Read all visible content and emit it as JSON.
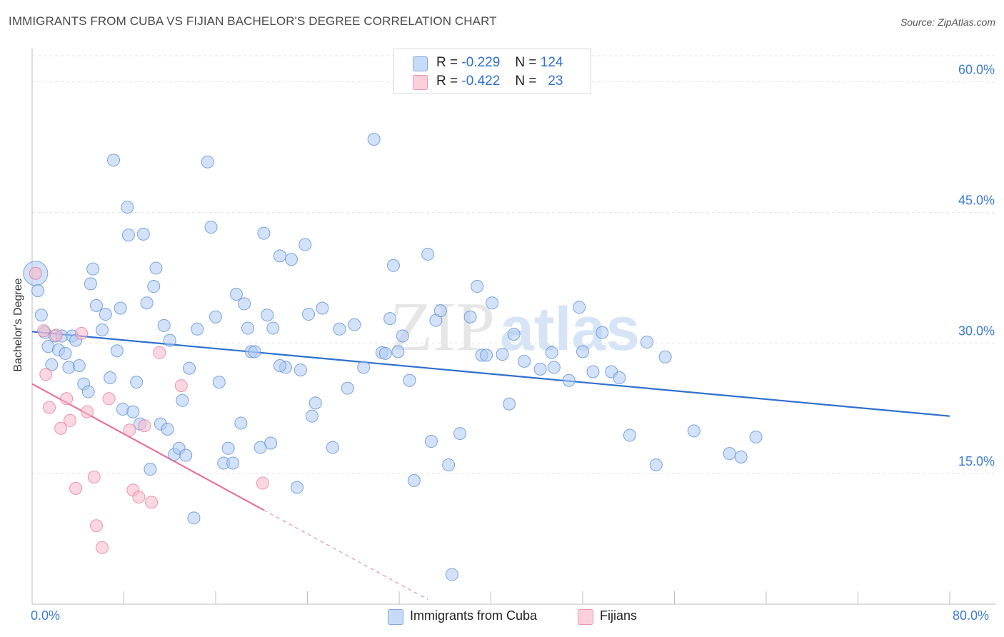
{
  "title": "IMMIGRANTS FROM CUBA VS FIJIAN BACHELOR'S DEGREE CORRELATION CHART",
  "source": "Source: ZipAtlas.com",
  "watermark": "ZIPatlas",
  "legend": {
    "rows": [
      {
        "r_label": "R =",
        "r_value": "-0.229",
        "n_label": "N =",
        "n_value": "124",
        "color": "#aecbf3"
      },
      {
        "r_label": "R =",
        "r_value": "-0.422",
        "n_label": "N =",
        "n_value": "23",
        "color": "#f7b6c8"
      }
    ]
  },
  "bottom_legend": [
    {
      "label": "Immigrants from Cuba",
      "color": "#aecbf3"
    },
    {
      "label": "Fijians",
      "color": "#f7b6c8"
    }
  ],
  "x_labels": {
    "min": "0.0%",
    "max": "80.0%"
  },
  "chart_data": {
    "type": "scatter",
    "title": "IMMIGRANTS FROM CUBA VS FIJIAN BACHELOR'S DEGREE CORRELATION CHART",
    "xlabel": "",
    "ylabel": "Bachelor's Degree",
    "xlim": [
      0,
      80
    ],
    "ylim": [
      0,
      63
    ],
    "y_ticks": [
      15,
      30,
      45,
      60
    ],
    "y_tick_labels": [
      "15.0%",
      "30.0%",
      "45.0%",
      "60.0%"
    ],
    "x_tick_positions": [
      0,
      8,
      16,
      24,
      32,
      40,
      48,
      56,
      64,
      72,
      80
    ],
    "grid": true,
    "series": [
      {
        "name": "Immigrants from Cuba",
        "color": "#aecbf3",
        "stroke": "#5b8fd8",
        "trend": {
          "x": [
            0,
            80
          ],
          "y": [
            31.3,
            21.6
          ],
          "color": "#2f6fcf"
        },
        "points": [
          [
            0.3,
            38.0
          ],
          [
            0.5,
            36.0
          ],
          [
            0.8,
            33.2
          ],
          [
            1.1,
            31.2
          ],
          [
            1.4,
            29.6
          ],
          [
            1.7,
            27.5
          ],
          [
            2.0,
            30.8
          ],
          [
            2.3,
            29.2
          ],
          [
            2.6,
            30.8
          ],
          [
            2.9,
            28.8
          ],
          [
            3.2,
            27.2
          ],
          [
            3.5,
            30.8
          ],
          [
            3.8,
            30.3
          ],
          [
            4.1,
            27.4
          ],
          [
            4.5,
            25.3
          ],
          [
            4.9,
            24.4
          ],
          [
            5.3,
            38.5
          ],
          [
            5.1,
            36.8
          ],
          [
            5.6,
            34.3
          ],
          [
            6.1,
            31.5
          ],
          [
            6.4,
            33.3
          ],
          [
            6.8,
            26.0
          ],
          [
            7.1,
            51.0
          ],
          [
            7.4,
            29.1
          ],
          [
            7.7,
            34.0
          ],
          [
            7.9,
            22.4
          ],
          [
            8.3,
            45.6
          ],
          [
            8.4,
            42.4
          ],
          [
            8.8,
            22.1
          ],
          [
            9.1,
            25.5
          ],
          [
            9.4,
            20.7
          ],
          [
            9.7,
            42.5
          ],
          [
            10.0,
            34.6
          ],
          [
            10.3,
            15.5
          ],
          [
            10.6,
            36.5
          ],
          [
            10.8,
            38.6
          ],
          [
            11.2,
            20.7
          ],
          [
            11.5,
            32.0
          ],
          [
            11.8,
            20.1
          ],
          [
            12.0,
            30.3
          ],
          [
            12.4,
            17.2
          ],
          [
            12.8,
            17.9
          ],
          [
            13.1,
            23.4
          ],
          [
            13.4,
            17.1
          ],
          [
            13.7,
            27.1
          ],
          [
            14.1,
            9.9
          ],
          [
            14.4,
            31.6
          ],
          [
            15.3,
            50.8
          ],
          [
            15.6,
            43.3
          ],
          [
            16.0,
            33.0
          ],
          [
            16.3,
            25.5
          ],
          [
            16.7,
            16.2
          ],
          [
            17.1,
            17.9
          ],
          [
            17.5,
            16.2
          ],
          [
            17.8,
            35.6
          ],
          [
            18.2,
            20.8
          ],
          [
            18.5,
            34.5
          ],
          [
            18.8,
            31.7
          ],
          [
            19.1,
            29.0
          ],
          [
            19.4,
            29.0
          ],
          [
            19.9,
            18.0
          ],
          [
            20.2,
            42.6
          ],
          [
            20.5,
            33.2
          ],
          [
            20.8,
            18.5
          ],
          [
            21.0,
            31.7
          ],
          [
            21.6,
            40.0
          ],
          [
            22.1,
            27.2
          ],
          [
            22.6,
            39.6
          ],
          [
            23.1,
            13.4
          ],
          [
            23.4,
            26.9
          ],
          [
            23.8,
            41.3
          ],
          [
            24.1,
            33.3
          ],
          [
            24.4,
            21.6
          ],
          [
            24.7,
            23.1
          ],
          [
            25.3,
            34.0
          ],
          [
            26.2,
            18.0
          ],
          [
            26.8,
            31.6
          ],
          [
            27.5,
            24.8
          ],
          [
            28.1,
            32.1
          ],
          [
            28.9,
            27.2
          ],
          [
            29.8,
            53.4
          ],
          [
            30.5,
            28.9
          ],
          [
            30.8,
            28.8
          ],
          [
            31.2,
            32.8
          ],
          [
            31.5,
            38.9
          ],
          [
            31.9,
            29.0
          ],
          [
            32.3,
            30.8
          ],
          [
            32.9,
            25.7
          ],
          [
            33.3,
            14.2
          ],
          [
            34.5,
            40.2
          ],
          [
            34.8,
            18.7
          ],
          [
            35.2,
            32.6
          ],
          [
            35.6,
            33.7
          ],
          [
            36.3,
            16.0
          ],
          [
            37.3,
            19.6
          ],
          [
            38.2,
            33.0
          ],
          [
            38.8,
            36.5
          ],
          [
            39.2,
            28.6
          ],
          [
            39.6,
            28.6
          ],
          [
            40.1,
            34.6
          ],
          [
            41.0,
            28.7
          ],
          [
            41.6,
            23.0
          ],
          [
            42.0,
            31.0
          ],
          [
            42.9,
            27.9
          ],
          [
            44.3,
            27.0
          ],
          [
            45.3,
            28.9
          ],
          [
            45.5,
            27.2
          ],
          [
            46.8,
            25.7
          ],
          [
            47.7,
            34.1
          ],
          [
            48.0,
            29.0
          ],
          [
            48.9,
            26.7
          ],
          [
            49.7,
            31.2
          ],
          [
            50.5,
            26.7
          ],
          [
            51.2,
            26.0
          ],
          [
            52.1,
            19.4
          ],
          [
            53.6,
            30.1
          ],
          [
            54.4,
            16.0
          ],
          [
            55.2,
            28.4
          ],
          [
            57.7,
            19.9
          ],
          [
            60.8,
            17.3
          ],
          [
            61.8,
            16.9
          ],
          [
            63.1,
            19.2
          ],
          [
            36.6,
            3.4
          ],
          [
            21.6,
            27.4
          ]
        ]
      },
      {
        "name": "Fijians",
        "color": "#f7b6c8",
        "stroke": "#e87aa0",
        "trend": {
          "x": [
            0,
            20.2
          ],
          "y": [
            25.3,
            10.8
          ],
          "dashed_to_x": 34.5,
          "color": "#e8719a"
        },
        "points": [
          [
            0.3,
            38.0
          ],
          [
            1.0,
            31.4
          ],
          [
            1.2,
            26.4
          ],
          [
            1.5,
            22.6
          ],
          [
            2.1,
            30.9
          ],
          [
            2.5,
            20.2
          ],
          [
            3.0,
            23.6
          ],
          [
            3.3,
            21.1
          ],
          [
            3.8,
            13.3
          ],
          [
            4.3,
            31.1
          ],
          [
            4.8,
            22.1
          ],
          [
            5.4,
            14.6
          ],
          [
            5.6,
            9.0
          ],
          [
            6.1,
            6.5
          ],
          [
            6.7,
            23.6
          ],
          [
            8.5,
            20.0
          ],
          [
            8.8,
            13.1
          ],
          [
            9.3,
            12.3
          ],
          [
            9.8,
            20.5
          ],
          [
            10.4,
            11.7
          ],
          [
            11.1,
            28.9
          ],
          [
            13.0,
            25.1
          ],
          [
            20.1,
            13.9
          ]
        ]
      }
    ]
  }
}
